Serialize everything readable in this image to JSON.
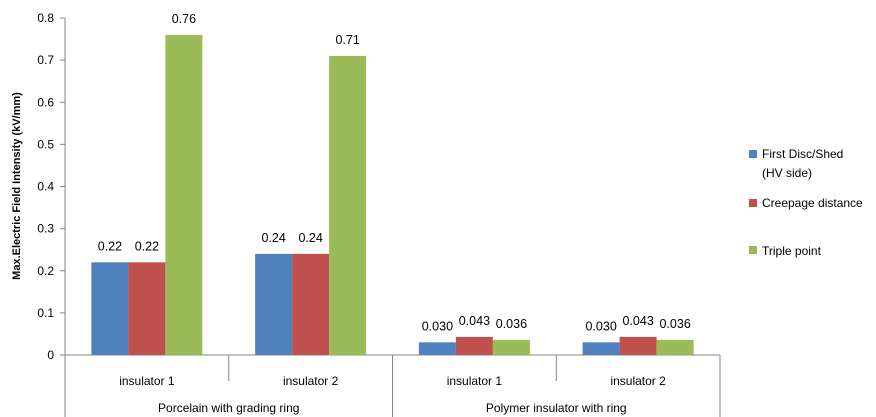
{
  "chart_data": {
    "type": "bar",
    "ylabel": "Max.Electric Field Intensity (kV/mm)",
    "ylim": [
      0,
      0.8
    ],
    "yticks": [
      "0",
      "0.1",
      "0.2",
      "0.3",
      "0.4",
      "0.5",
      "0.6",
      "0.7",
      "0.8"
    ],
    "grid": false,
    "legend_position": "right",
    "groups": [
      {
        "label": "Porcelain with grading ring",
        "categories": [
          "insulator 1",
          "insulator 2"
        ]
      },
      {
        "label": "Polymer insulator with ring",
        "categories": [
          "insulator 1",
          "insulator 2"
        ]
      }
    ],
    "series": [
      {
        "name": "First Disc/Shed (HV side)",
        "color": "#4f81bd",
        "values": [
          0.22,
          0.24,
          0.03,
          0.03
        ],
        "labels": [
          "0.22",
          "0.24",
          "0.030",
          "0.030"
        ]
      },
      {
        "name": "Creepage distance",
        "color": "#c0504d",
        "values": [
          0.22,
          0.24,
          0.043,
          0.043
        ],
        "labels": [
          "0.22",
          "0.24",
          "0.043",
          "0.043"
        ]
      },
      {
        "name": "Triple point",
        "color": "#9bbb59",
        "values": [
          0.76,
          0.71,
          0.036,
          0.036
        ],
        "labels": [
          "0.76",
          "0.71",
          "0.036",
          "0.036"
        ]
      }
    ],
    "legend": {
      "first_line": "First Disc/Shed",
      "second_line": "(HV side)",
      "creepage": "Creepage distance",
      "triple": "Triple point"
    }
  }
}
